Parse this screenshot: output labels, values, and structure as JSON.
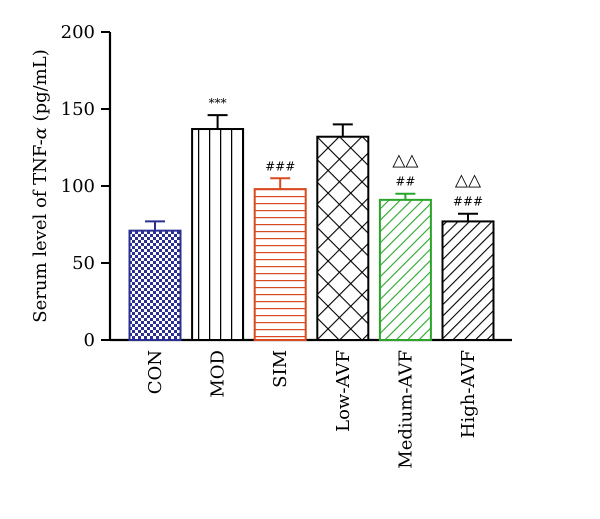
{
  "chart_data": {
    "type": "bar",
    "categories": [
      "CON",
      "MOD",
      "SIM",
      "Low-AVF",
      "Medium-AVF",
      "High-AVF"
    ],
    "values": [
      71,
      137,
      98,
      132,
      91,
      77
    ],
    "errors": [
      6,
      9,
      7,
      8,
      4,
      5
    ],
    "ylabel_parts": {
      "prefix": "Serum level of TNF-",
      "symbol": "α",
      "suffix": " (pg/mL)"
    },
    "ylim": [
      0,
      200
    ],
    "yticks": [
      0,
      50,
      100,
      150,
      200
    ],
    "grid": false,
    "legend": "none",
    "annotations": [
      [
        "",
        ""
      ],
      [
        "***",
        ""
      ],
      [
        "###",
        ""
      ],
      [
        "",
        ""
      ],
      [
        "##",
        "△△"
      ],
      [
        "###",
        "△△"
      ]
    ],
    "colors": [
      "#2b2f92",
      "#000000",
      "#d84a1f",
      "#000000",
      "#2aa52a",
      "#000000"
    ],
    "patterns": [
      "checker",
      "vertical",
      "horizontal",
      "crosshatch",
      "diagonal",
      "diagonal"
    ]
  }
}
